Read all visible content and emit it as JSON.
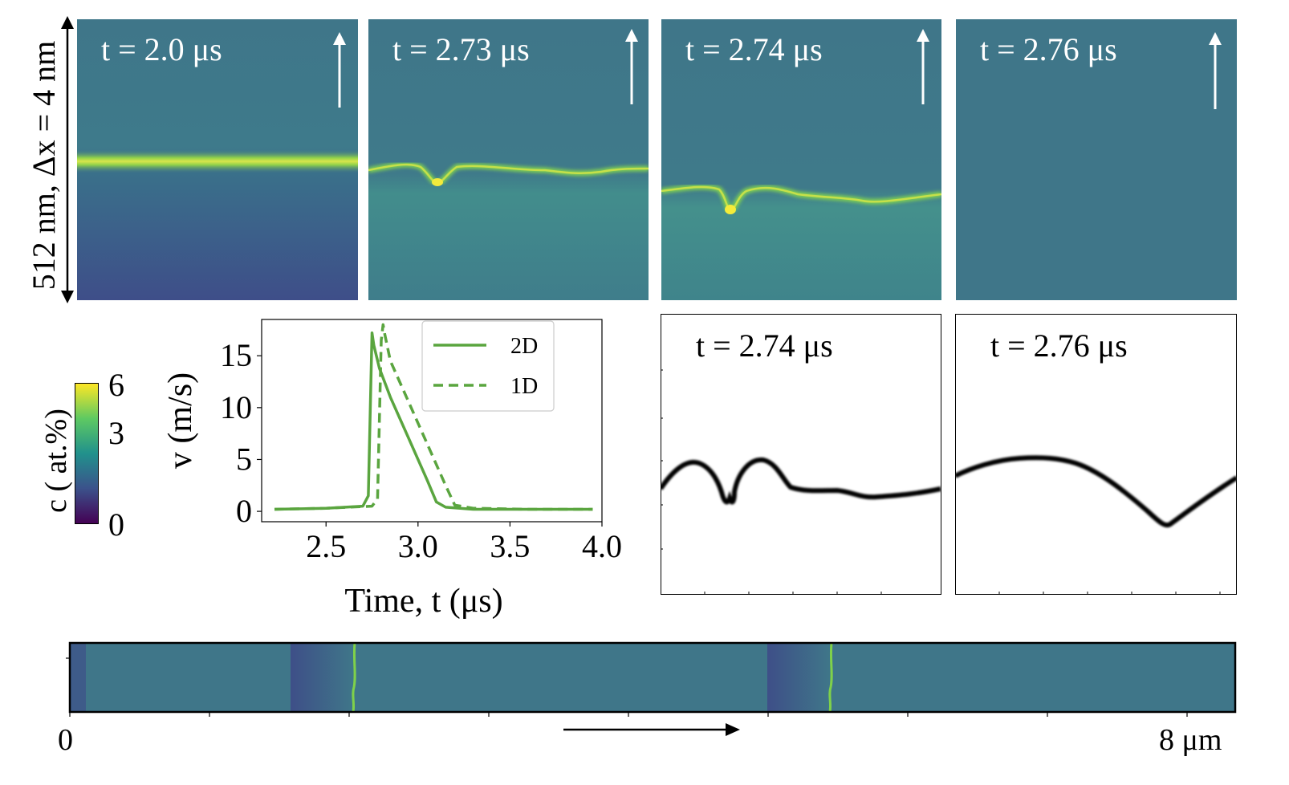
{
  "figure": {
    "vertical_label": "512 nm, Δx = 4 nm",
    "colorbar": {
      "title": "c ( at.%)",
      "ticks": [
        "6",
        "3",
        "0"
      ],
      "colors": [
        "#440154",
        "#3b528b",
        "#21918c",
        "#5ec962",
        "#fde725"
      ]
    },
    "top_panels": [
      {
        "label": "t = 2.0 μs",
        "band_color": "#d8e64c"
      },
      {
        "label": "t = 2.73 μs",
        "band_color": "#a6d94a"
      },
      {
        "label": "t = 2.74 μs",
        "band_color": "#a6d94a"
      },
      {
        "label": "t = 2.76 μs",
        "band_color": "#3f7689"
      }
    ],
    "interface_panels": [
      {
        "label": "t = 2.74 μs"
      },
      {
        "label": "t = 2.76 μs"
      }
    ],
    "bottom_strip": {
      "left_label": "0",
      "right_label": "8 μm",
      "background": "#3f7689"
    },
    "accent_green": "#5aa53f",
    "panel_teal": "#3f7689"
  },
  "chart_data": {
    "type": "line",
    "title": "",
    "xlabel": "Time, t (μs)",
    "ylabel": "v (m/s)",
    "xlim": [
      2.15,
      4.0
    ],
    "ylim": [
      -1,
      18.5
    ],
    "xticks": [
      "2.5",
      "3.0",
      "3.5",
      "4.0"
    ],
    "xtick_values": [
      2.5,
      3.0,
      3.5,
      4.0
    ],
    "yticks": [
      "0",
      "5",
      "10",
      "15"
    ],
    "ytick_values": [
      0,
      5,
      10,
      15
    ],
    "legend": [
      "2D",
      "1D"
    ],
    "legend_position": "top-right",
    "series": [
      {
        "name": "2D",
        "style": "solid",
        "x": [
          2.22,
          2.5,
          2.7,
          2.73,
          2.75,
          2.76,
          2.79,
          2.85,
          2.95,
          3.05,
          3.1,
          3.15,
          3.3,
          3.6,
          3.95
        ],
        "y": [
          0.2,
          0.3,
          0.5,
          1.5,
          17.2,
          16.0,
          13.8,
          11.0,
          7.0,
          3.0,
          0.9,
          0.4,
          0.2,
          0.2,
          0.2
        ]
      },
      {
        "name": "1D",
        "style": "dashed",
        "x": [
          2.22,
          2.5,
          2.75,
          2.78,
          2.8,
          2.81,
          2.82,
          2.85,
          2.95,
          3.05,
          3.15,
          3.2,
          3.3,
          3.6,
          3.95
        ],
        "y": [
          0.2,
          0.3,
          0.5,
          1.2,
          16.5,
          18.0,
          17.0,
          14.5,
          10.5,
          6.5,
          2.5,
          0.6,
          0.3,
          0.2,
          0.2
        ]
      }
    ]
  }
}
